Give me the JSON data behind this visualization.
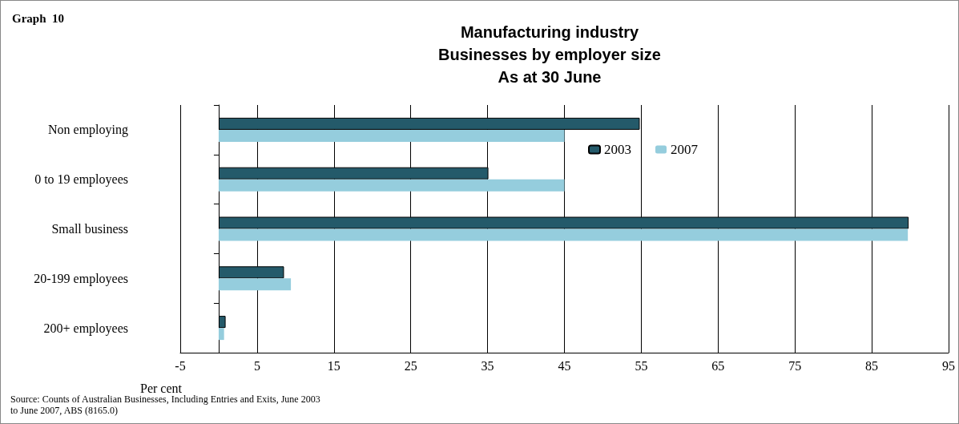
{
  "chart_data": {
    "type": "bar",
    "orientation": "horizontal",
    "title": "Manufacturing industry\nBusinesses by employer size\nAs at 30 June",
    "xlabel": "Per cent",
    "categories": [
      "Non employing",
      "0 to 19 employees",
      "Small business",
      "20-199 employees",
      "200+ employees"
    ],
    "series": [
      {
        "name": "2003",
        "color": "#245a6a",
        "values": [
          54.8,
          35.1,
          89.8,
          8.5,
          0.9
        ]
      },
      {
        "name": "2007",
        "color": "#95cddd",
        "values": [
          45.0,
          45.0,
          89.7,
          9.4,
          0.7
        ]
      }
    ],
    "xlim": [
      -5,
      95
    ],
    "xticks": [
      -5,
      5,
      15,
      25,
      35,
      45,
      55,
      65,
      75,
      85,
      95
    ],
    "grid": "x",
    "legend": "top right",
    "annotations": [
      "Graph  10",
      "Source: Counts of Australian Businesses, Including Entries and Exits, June 2003\nto June 2007, ABS (8165.0)"
    ]
  }
}
